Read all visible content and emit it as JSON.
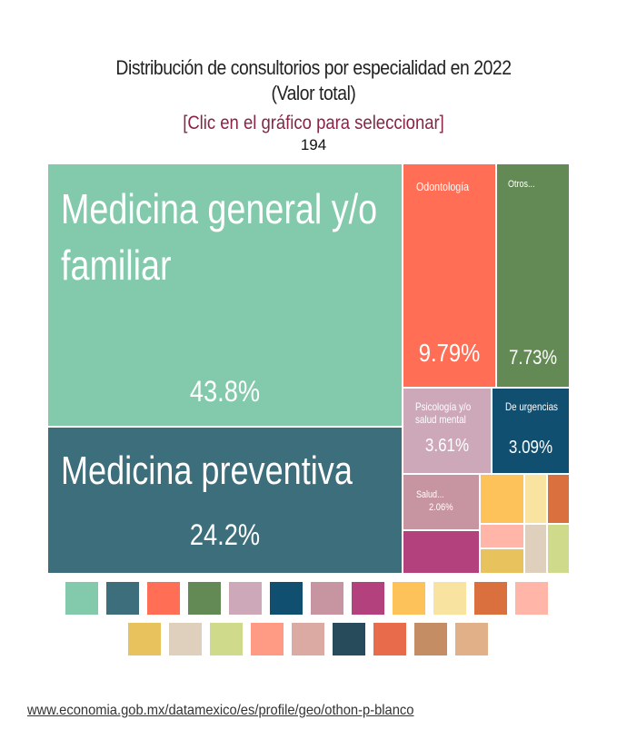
{
  "header": {
    "title": "Distribución de consultorios por especialidad en 2022",
    "subtitle": "(Valor total)",
    "instruction": "[Clic en el gráfico para seleccionar]",
    "total": "194"
  },
  "footer": {
    "link": "www.economia.gob.mx/datamexico/es/profile/geo/othon-p-blanco"
  },
  "chart_data": {
    "type": "treemap",
    "title": "Distribución de consultorios por especialidad en 2022 (Valor total)",
    "total": 194,
    "items": [
      {
        "label": "Medicina general y/o familiar",
        "display_label": "Medicina general y/o familiar",
        "percent": 43.8,
        "pct_label": "43.8%",
        "color": "#82CAAB"
      },
      {
        "label": "Medicina preventiva",
        "display_label": "Medicina preventiva",
        "percent": 24.2,
        "pct_label": "24.2%",
        "color": "#3D6E7C"
      },
      {
        "label": "Odontología",
        "display_label": "Odontología",
        "percent": 9.79,
        "pct_label": "9.79%",
        "color": "#FF6E55"
      },
      {
        "label": "Otros",
        "display_label": "Otros...",
        "percent": 7.73,
        "pct_label": "7.73%",
        "color": "#638A55"
      },
      {
        "label": "Psicología y/o salud mental",
        "display_label": "Psicología y/o salud mental",
        "percent": 3.61,
        "pct_label": "3.61%",
        "color": "#CDA8B8"
      },
      {
        "label": "De urgencias",
        "display_label": "De urgencias",
        "percent": 3.09,
        "pct_label": "3.09%",
        "color": "#114F70"
      },
      {
        "label": "Salud",
        "display_label": "Salud...",
        "percent": 2.06,
        "pct_label": "2.06%",
        "color": "#C795A1"
      },
      {
        "label": "",
        "display_label": "",
        "percent": 1.55,
        "pct_label": "",
        "color": "#B3417E"
      },
      {
        "label": "",
        "display_label": "",
        "percent": 1.03,
        "pct_label": "",
        "color": "#FDC25A"
      },
      {
        "label": "",
        "display_label": "",
        "percent": 0.52,
        "pct_label": "",
        "color": "#F9E3A0"
      },
      {
        "label": "",
        "display_label": "",
        "percent": 0.52,
        "pct_label": "",
        "color": "#DA703D"
      },
      {
        "label": "",
        "display_label": "",
        "percent": 0.52,
        "pct_label": "",
        "color": "#FFB6A8"
      },
      {
        "label": "",
        "display_label": "",
        "percent": 0.52,
        "pct_label": "",
        "color": "#E8C25D"
      },
      {
        "label": "",
        "display_label": "",
        "percent": 0.52,
        "pct_label": "",
        "color": "#DFCFBD"
      },
      {
        "label": "",
        "display_label": "",
        "percent": 0.52,
        "pct_label": "",
        "color": "#CFDA8A"
      }
    ],
    "legend_colors": [
      "#82CAAB",
      "#3D6E7C",
      "#FF6E55",
      "#638A55",
      "#CDA8B8",
      "#114F70",
      "#C795A1",
      "#B3417E",
      "#FDC25A",
      "#F9E3A0",
      "#DA703D",
      "#FFB6A8",
      "#E8C25D",
      "#DFCFBD",
      "#CFDA8A",
      "#FF9B85",
      "#DBABA3",
      "#274B5A",
      "#E86C4C",
      "#C58D63",
      "#E2B088"
    ]
  }
}
